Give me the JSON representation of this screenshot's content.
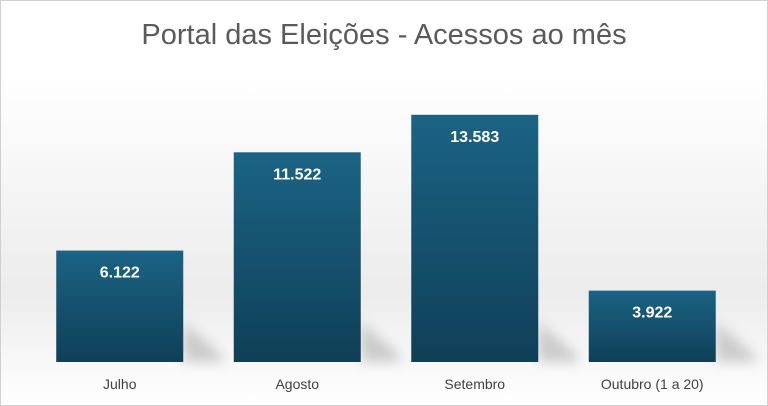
{
  "chart_data": {
    "type": "bar",
    "title": "Portal das Eleições - Acessos ao mês",
    "categories": [
      "Julho",
      "Agosto",
      "Setembro",
      "Outubro (1 a 20)"
    ],
    "values": [
      6122,
      11522,
      13583,
      3922
    ],
    "value_labels": [
      "6.122",
      "11.522",
      "13.583",
      "3.922"
    ],
    "xlabel": "",
    "ylabel": "",
    "ylim": [
      0,
      15000
    ],
    "grid": false,
    "legend": "none",
    "colors": {
      "bar_top": "#1b6384",
      "bar_bottom": "#0f3f57",
      "shadow": "#a9a9a9"
    }
  }
}
